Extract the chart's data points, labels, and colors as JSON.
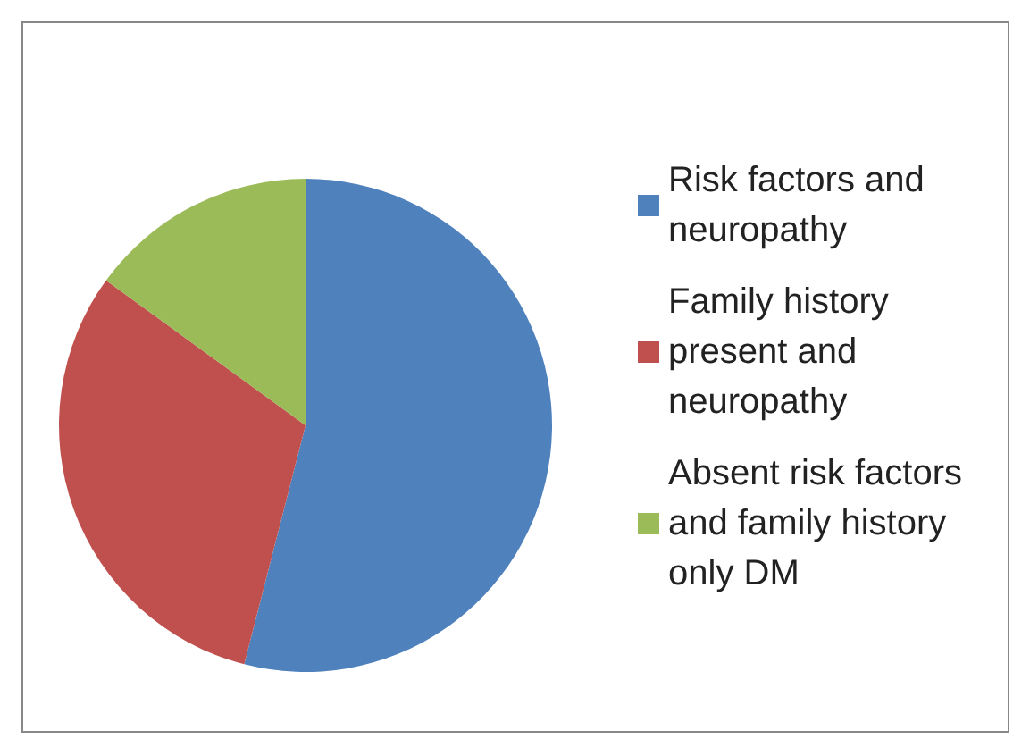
{
  "chart_data": {
    "type": "pie",
    "categories": [
      "Risk factors and neuropathy",
      "Family history present and neuropathy",
      "Absent risk factors and family history only DM"
    ],
    "values": [
      54,
      31,
      15
    ],
    "colors": [
      "#4f81bd",
      "#c0504d",
      "#9bbb59"
    ],
    "legend": "right"
  }
}
